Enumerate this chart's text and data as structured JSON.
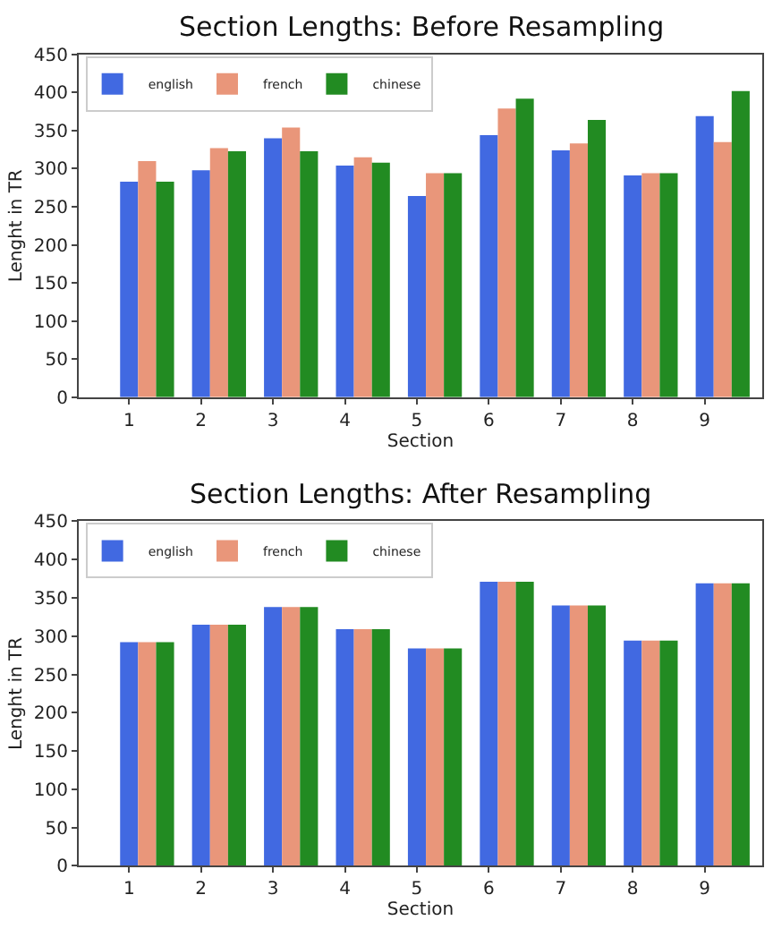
{
  "chart_data": [
    {
      "type": "bar",
      "title": "Section Lengths: Before Resampling",
      "xlabel": "Section",
      "ylabel": "Lenght in TR",
      "categories": [
        "1",
        "2",
        "3",
        "4",
        "5",
        "6",
        "7",
        "8",
        "9"
      ],
      "series": [
        {
          "name": "english",
          "color": "#4169e1",
          "values": [
            283,
            298,
            340,
            304,
            264,
            344,
            324,
            291,
            369
          ]
        },
        {
          "name": "french",
          "color": "#e9967a",
          "values": [
            310,
            327,
            354,
            315,
            294,
            379,
            333,
            294,
            335
          ]
        },
        {
          "name": "chinese",
          "color": "#228b22",
          "values": [
            283,
            323,
            323,
            308,
            294,
            392,
            364,
            294,
            402
          ]
        }
      ],
      "ylim": [
        0,
        450
      ],
      "yticks": [
        0,
        50,
        100,
        150,
        200,
        250,
        300,
        350,
        400,
        450
      ],
      "legend": "top left"
    },
    {
      "type": "bar",
      "title": "Section Lengths: After Resampling",
      "xlabel": "Section",
      "ylabel": "Lenght in TR",
      "categories": [
        "1",
        "2",
        "3",
        "4",
        "5",
        "6",
        "7",
        "8",
        "9"
      ],
      "series": [
        {
          "name": "english",
          "color": "#4169e1",
          "values": [
            292,
            315,
            338,
            309,
            284,
            371,
            340,
            294,
            369
          ]
        },
        {
          "name": "french",
          "color": "#e9967a",
          "values": [
            292,
            315,
            338,
            309,
            284,
            371,
            340,
            294,
            369
          ]
        },
        {
          "name": "chinese",
          "color": "#228b22",
          "values": [
            292,
            315,
            338,
            309,
            284,
            371,
            340,
            294,
            369
          ]
        }
      ],
      "ylim": [
        0,
        450
      ],
      "yticks": [
        0,
        50,
        100,
        150,
        200,
        250,
        300,
        350,
        400,
        450
      ],
      "legend": "top left"
    }
  ]
}
